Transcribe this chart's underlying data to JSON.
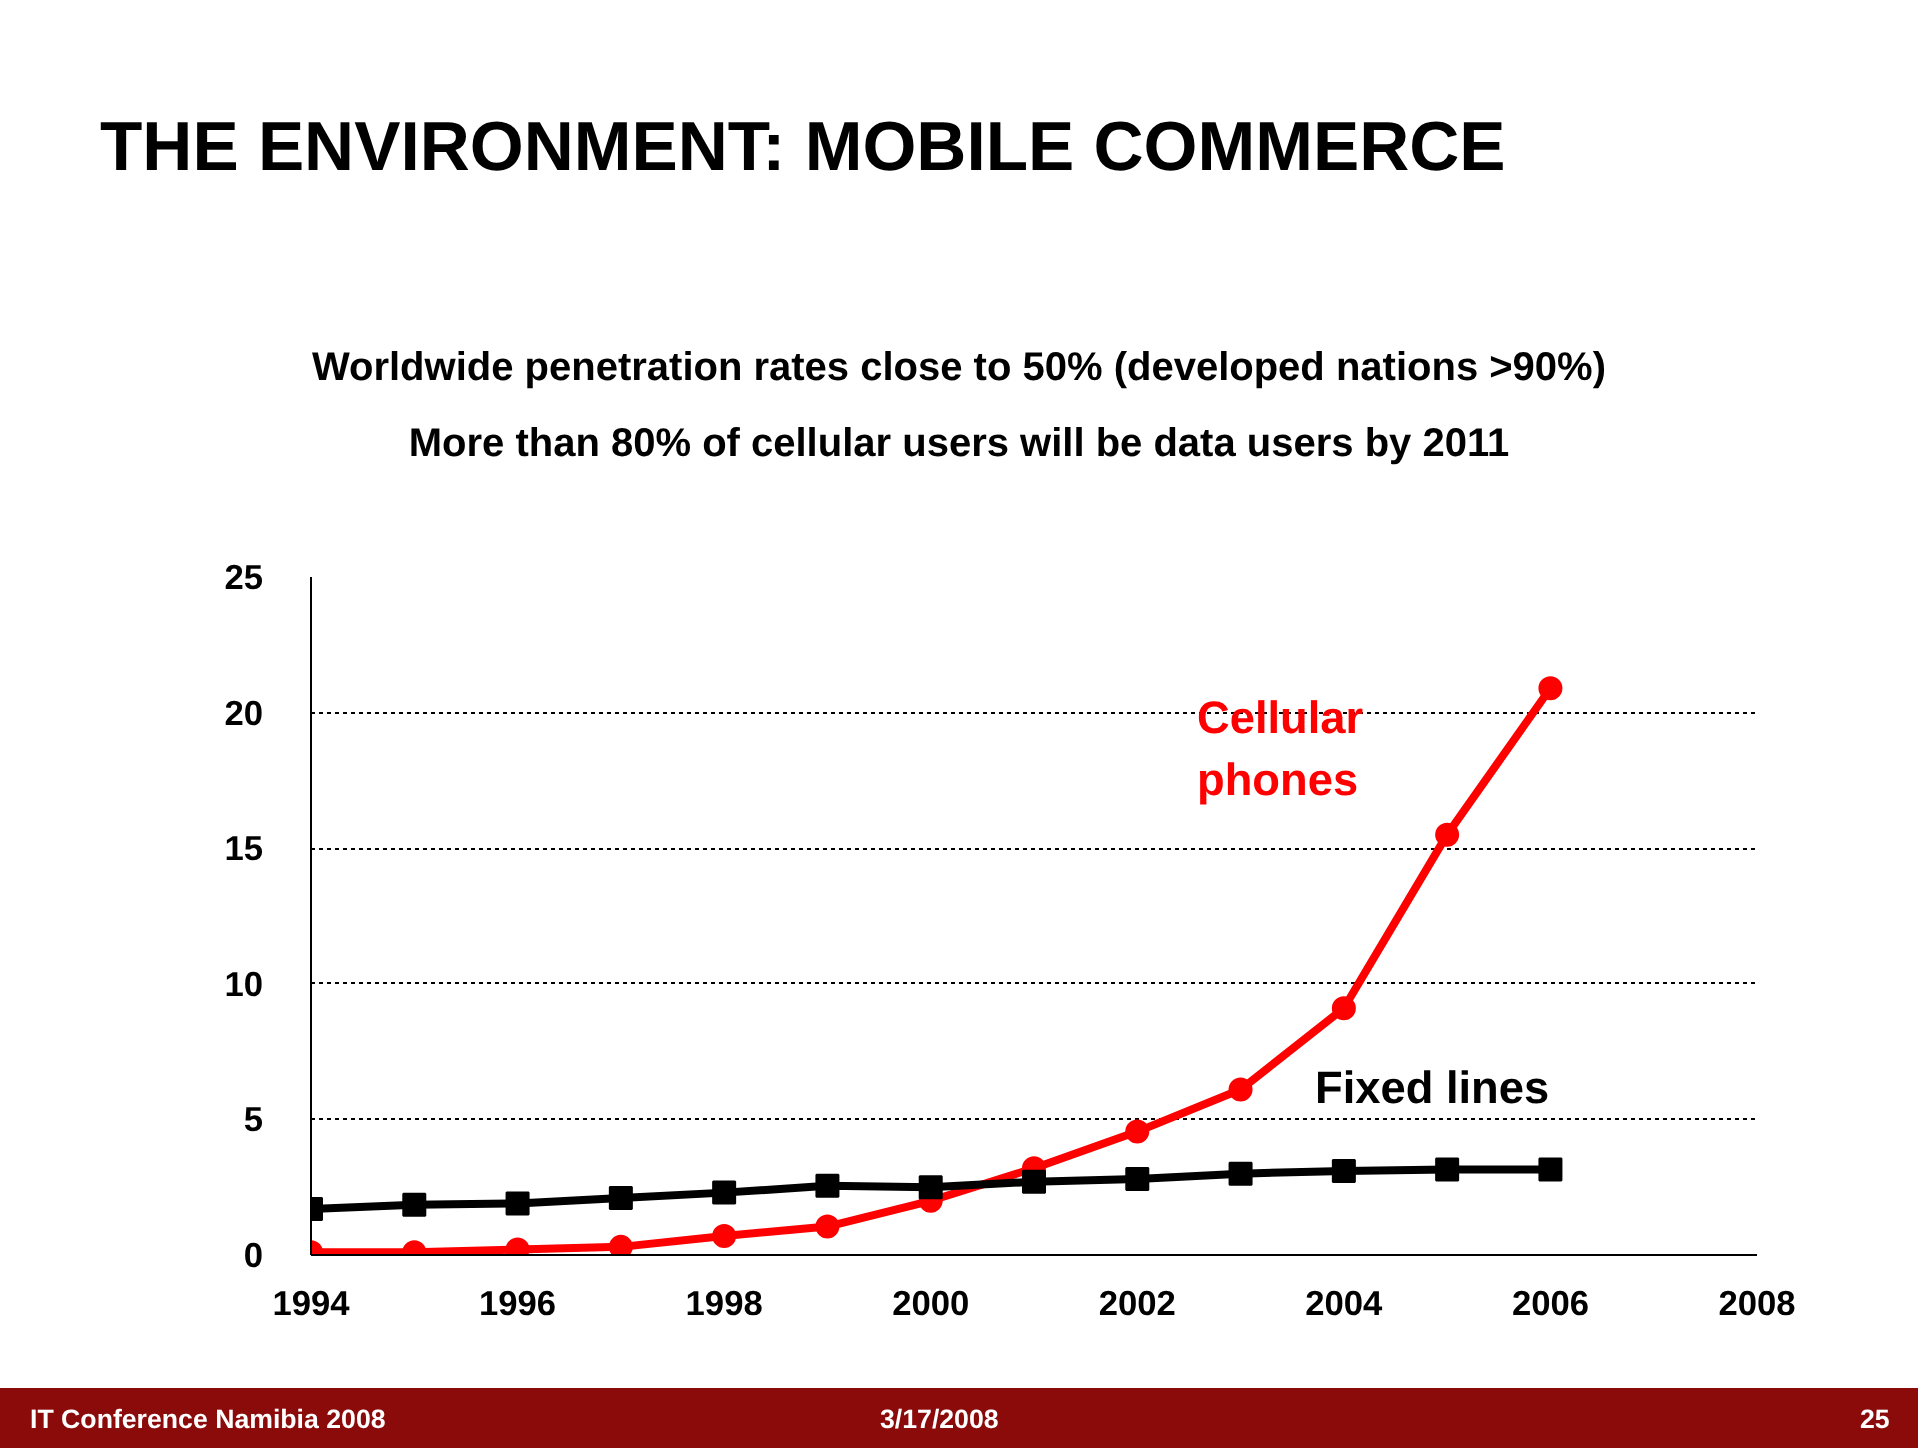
{
  "chart_data": {
    "type": "line",
    "title": "THE ENVIRONMENT: MOBILE COMMERCE",
    "subtitle": "Worldwide penetration rates close to 50% (developed nations >90%)\nMore than 80% of cellular users will be data users by 2011",
    "x": [
      1994,
      1995,
      1996,
      1997,
      1998,
      1999,
      2000,
      2001,
      2002,
      2003,
      2004,
      2005,
      2006
    ],
    "series": [
      {
        "name": "Cellular phones",
        "color": "#ff0000",
        "marker": "circle",
        "values": [
          0.1,
          0.1,
          0.2,
          0.3,
          0.7,
          1.05,
          2.0,
          3.2,
          4.55,
          6.1,
          9.1,
          15.5,
          20.9
        ]
      },
      {
        "name": "Fixed lines",
        "color": "#000000",
        "marker": "square",
        "values": [
          1.7,
          1.85,
          1.9,
          2.1,
          2.3,
          2.55,
          2.5,
          2.7,
          2.8,
          3.0,
          3.1,
          3.15,
          3.15
        ]
      }
    ],
    "xlim": [
      1994,
      2008
    ],
    "xticks": [
      1994,
      1996,
      1998,
      2000,
      2002,
      2004,
      2006,
      2008
    ],
    "ylim": [
      0,
      25
    ],
    "yticks": [
      0,
      5,
      10,
      15,
      20,
      25
    ],
    "grid": "y",
    "legend": false,
    "annotations": [
      "IT Conference Namibia 2008",
      "3/17/2008",
      "25"
    ]
  }
}
